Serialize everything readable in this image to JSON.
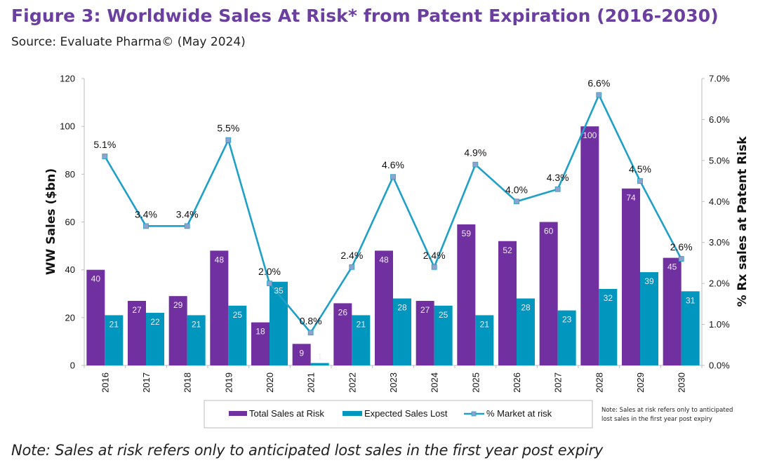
{
  "header": {
    "title": "Figure 3: Worldwide Sales At Risk* from Patent Expiration (2016-2030)",
    "source": "Source: Evaluate Pharma© (May 2024)"
  },
  "footnote": "Note: Sales at risk refers only to anticipated lost sales in the first year post expiry",
  "colors": {
    "title": "#6a3fa0",
    "total_sales": "#7030a0",
    "expected_lost": "#0096bd",
    "market_line": "#1ea0c8",
    "marker_fill": "#8fa3cc"
  },
  "chart_data": {
    "type": "bar",
    "title": "Worldwide Sales At Risk* from Patent Expiration (2016-2030)",
    "categories": [
      "2016",
      "2017",
      "2018",
      "2019",
      "2020",
      "2021",
      "2022",
      "2023",
      "2024",
      "2025",
      "2026",
      "2027",
      "2028",
      "2029",
      "2030"
    ],
    "series": [
      {
        "name": "Total Sales at Risk",
        "type": "bar",
        "axis": "left",
        "values": [
          40,
          27,
          29,
          48,
          18,
          9,
          26,
          48,
          27,
          59,
          52,
          60,
          100,
          74,
          45
        ]
      },
      {
        "name": "Expected Sales Lost",
        "type": "bar",
        "axis": "left",
        "values": [
          21,
          22,
          21,
          25,
          35,
          1,
          21,
          28,
          25,
          21,
          28,
          23,
          32,
          39,
          31
        ]
      },
      {
        "name": "% Market at risk",
        "type": "line",
        "axis": "right",
        "values": [
          5.1,
          3.4,
          3.4,
          5.5,
          2.0,
          0.8,
          2.4,
          4.6,
          2.4,
          4.9,
          4.0,
          4.3,
          6.6,
          4.5,
          2.6
        ],
        "labels": [
          "5.1%",
          "3.4%",
          "3.4%",
          "5.5%",
          "2.0%",
          "0.8%",
          "2.4%",
          "4.6%",
          "2.4%",
          "4.9%",
          "4.0%",
          "4.3%",
          "6.6%",
          "4.5%",
          "2.6%"
        ]
      }
    ],
    "ylabel": "WW Sales ($bn)",
    "ylim": [
      0,
      120
    ],
    "yticks": [
      "0",
      "20",
      "40",
      "60",
      "80",
      "100",
      "120"
    ],
    "y2label": "% Rx sales at Patent Risk",
    "y2lim": [
      0,
      7
    ],
    "y2ticks": [
      "0.0%",
      "1.0%",
      "2.0%",
      "3.0%",
      "4.0%",
      "5.0%",
      "6.0%",
      "7.0%"
    ],
    "xlabel": "",
    "grid": false,
    "legend": {
      "placement": "bottom",
      "entries": [
        "Total Sales at Risk",
        "Expected Sales Lost",
        "% Market at risk"
      ]
    },
    "annotation": "Note: Sales at risk refers only to anticipated lost sales in the first year post expiry"
  }
}
